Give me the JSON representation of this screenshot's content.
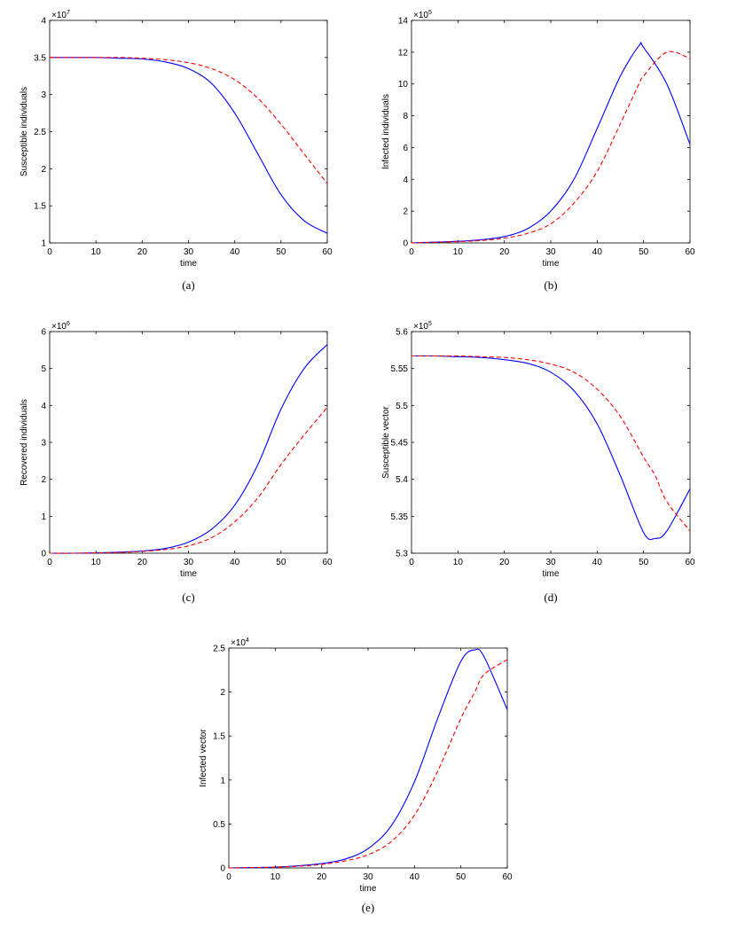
{
  "series_colors": {
    "solid": "#0000ff",
    "dashed": "#ff0000"
  },
  "chart_data": [
    {
      "type": "line",
      "sublabel": "(a)",
      "xlabel": "time",
      "ylabel": "Susceptible individuals",
      "xlim": [
        0,
        60
      ],
      "ylim": [
        1,
        4
      ],
      "xticks": [
        "0",
        "10",
        "20",
        "30",
        "40",
        "50",
        "60"
      ],
      "yticks": [
        "1",
        "1.5",
        "2",
        "2.5",
        "3",
        "3.5",
        "4"
      ],
      "exponent": {
        "base": "×10",
        "power": "7"
      },
      "grid": false,
      "x": [
        0,
        5,
        10,
        15,
        20,
        25,
        30,
        35,
        40,
        45,
        50,
        55,
        60
      ],
      "series": [
        {
          "style": "solid",
          "color": "#0000ff",
          "values": [
            3.5,
            3.5,
            3.5,
            3.49,
            3.48,
            3.44,
            3.35,
            3.15,
            2.75,
            2.2,
            1.65,
            1.3,
            1.13
          ]
        },
        {
          "style": "dashed",
          "color": "#ff0000",
          "values": [
            3.5,
            3.5,
            3.5,
            3.5,
            3.49,
            3.47,
            3.43,
            3.35,
            3.2,
            2.95,
            2.6,
            2.2,
            1.8
          ]
        }
      ]
    },
    {
      "type": "line",
      "sublabel": "(b)",
      "xlabel": "time",
      "ylabel": "Infected individuals",
      "xlim": [
        0,
        60
      ],
      "ylim": [
        0,
        14
      ],
      "xticks": [
        "0",
        "10",
        "20",
        "30",
        "40",
        "50",
        "60"
      ],
      "yticks": [
        "0",
        "2",
        "4",
        "6",
        "8",
        "10",
        "12",
        "14"
      ],
      "exponent": {
        "base": "×10",
        "power": "5"
      },
      "grid": false,
      "x": [
        0,
        5,
        10,
        15,
        20,
        25,
        30,
        35,
        40,
        45,
        49,
        50,
        55,
        60
      ],
      "series": [
        {
          "style": "solid",
          "color": "#0000ff",
          "values": [
            0.0,
            0.05,
            0.1,
            0.2,
            0.4,
            0.9,
            2.0,
            4.0,
            7.2,
            10.5,
            12.4,
            12.3,
            10.0,
            6.2
          ]
        },
        {
          "style": "dashed",
          "color": "#ff0000",
          "values": [
            0.0,
            0.04,
            0.08,
            0.15,
            0.3,
            0.6,
            1.2,
            2.5,
            4.5,
            7.5,
            10.0,
            10.5,
            12.0,
            11.6
          ]
        }
      ]
    },
    {
      "type": "line",
      "sublabel": "(c)",
      "xlabel": "time",
      "ylabel": "Recovered individuals",
      "xlim": [
        0,
        60
      ],
      "ylim": [
        0,
        6
      ],
      "xticks": [
        "0",
        "10",
        "20",
        "30",
        "40",
        "50",
        "60"
      ],
      "yticks": [
        "0",
        "1",
        "2",
        "3",
        "4",
        "5",
        "6"
      ],
      "exponent": {
        "base": "×10",
        "power": "6"
      },
      "grid": false,
      "x": [
        0,
        5,
        10,
        15,
        20,
        25,
        30,
        35,
        40,
        45,
        50,
        55,
        60
      ],
      "series": [
        {
          "style": "solid",
          "color": "#0000ff",
          "values": [
            0.0,
            0.0,
            0.01,
            0.03,
            0.06,
            0.13,
            0.3,
            0.65,
            1.3,
            2.4,
            3.9,
            5.0,
            5.65
          ]
        },
        {
          "style": "dashed",
          "color": "#ff0000",
          "values": [
            0.0,
            0.0,
            0.01,
            0.02,
            0.05,
            0.1,
            0.2,
            0.42,
            0.85,
            1.5,
            2.4,
            3.2,
            3.95
          ]
        }
      ]
    },
    {
      "type": "line",
      "sublabel": "(d)",
      "xlabel": "time",
      "ylabel": "Susceptible vector",
      "xlim": [
        0,
        60
      ],
      "ylim": [
        5.3,
        5.6
      ],
      "xticks": [
        "0",
        "10",
        "20",
        "30",
        "40",
        "50",
        "60"
      ],
      "yticks": [
        "5.3",
        "5.35",
        "5.4",
        "5.45",
        "5.5",
        "5.55",
        "5.6"
      ],
      "exponent": {
        "base": "×10",
        "power": "5"
      },
      "grid": false,
      "x": [
        0,
        5,
        10,
        15,
        20,
        25,
        30,
        35,
        40,
        45,
        50,
        52.5,
        55,
        60
      ],
      "series": [
        {
          "style": "solid",
          "color": "#0000ff",
          "values": [
            5.567,
            5.567,
            5.566,
            5.565,
            5.562,
            5.557,
            5.545,
            5.52,
            5.475,
            5.405,
            5.328,
            5.32,
            5.33,
            5.387
          ]
        },
        {
          "style": "dashed",
          "color": "#ff0000",
          "values": [
            5.567,
            5.567,
            5.567,
            5.566,
            5.565,
            5.562,
            5.556,
            5.545,
            5.522,
            5.485,
            5.43,
            5.405,
            5.37,
            5.33
          ]
        }
      ]
    },
    {
      "type": "line",
      "sublabel": "(e)",
      "xlabel": "time",
      "ylabel": "Infected vector",
      "xlim": [
        0,
        60
      ],
      "ylim": [
        0,
        2.5
      ],
      "xticks": [
        "0",
        "10",
        "20",
        "30",
        "40",
        "50",
        "60"
      ],
      "yticks": [
        "0",
        "0.5",
        "1",
        "1.5",
        "2",
        "2.5"
      ],
      "exponent": {
        "base": "×10",
        "power": "4"
      },
      "grid": false,
      "x": [
        0,
        5,
        10,
        15,
        20,
        25,
        30,
        35,
        40,
        45,
        50,
        53,
        55,
        60
      ],
      "series": [
        {
          "style": "solid",
          "color": "#0000ff",
          "values": [
            0.0,
            0.005,
            0.01,
            0.025,
            0.05,
            0.1,
            0.22,
            0.48,
            0.98,
            1.7,
            2.35,
            2.48,
            2.4,
            1.8
          ]
        },
        {
          "style": "dashed",
          "color": "#ff0000",
          "values": [
            0.0,
            0.004,
            0.008,
            0.02,
            0.04,
            0.08,
            0.15,
            0.3,
            0.6,
            1.1,
            1.7,
            2.0,
            2.2,
            2.37
          ]
        }
      ]
    }
  ]
}
